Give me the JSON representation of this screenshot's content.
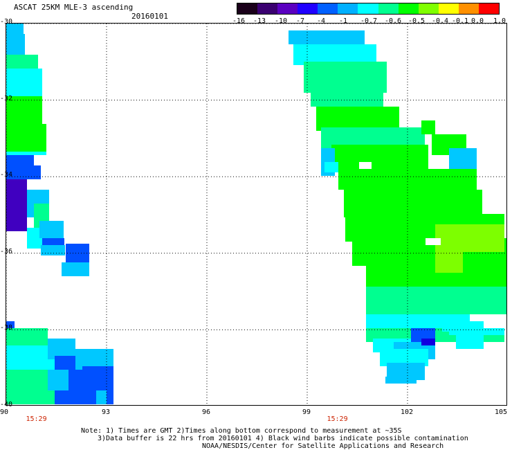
{
  "header": {
    "title": "ASCAT 25KM MLE-3 ascending",
    "date": "20160101"
  },
  "colorbar": {
    "tick_labels": [
      "-16",
      "-13",
      "-10",
      "-7",
      "-4",
      "-1",
      "-0.7",
      "-0.6",
      "-0.5",
      "-0.4",
      "-0.1",
      "0.0",
      "1.0"
    ],
    "colors": [
      "#1a001a",
      "#3a0070",
      "#5a00c0",
      "#2000ff",
      "#0060ff",
      "#00b0ff",
      "#00ffff",
      "#00ff90",
      "#00ff00",
      "#80ff00",
      "#ffff00",
      "#ff9000",
      "#ff0000"
    ]
  },
  "map": {
    "lat_labels": [
      "-30",
      "-32",
      "-34",
      "-36",
      "-38",
      "-40"
    ],
    "lon_labels": [
      "90",
      "93",
      "96",
      "99",
      "102",
      "105"
    ],
    "lat_range": [
      -40,
      -30
    ],
    "lon_range": [
      90,
      105
    ],
    "grid": "dotted",
    "time_labels": [
      {
        "text": "15:29",
        "lon": 90.9
      },
      {
        "text": "15:29",
        "lon": 99.9
      }
    ],
    "colors": {
      "cyan": "#00ffff",
      "sky": "#00c8ff",
      "aqua_green": "#00ff90",
      "green": "#00ff00",
      "yellow_green": "#7dff00",
      "blue": "#0050ff",
      "deep_blue": "#1000e0",
      "violet": "#4000c0"
    }
  },
  "notes": {
    "line1": "Note: 1) Times are GMT 2)Times along bottom correspond to measurement at ~35S",
    "line2": "3)Data buffer is 22 hrs from 20160101 4) Black wind barbs indicate possible contamination",
    "line3": "NOAA/NESDIS/Center for Satellite Applications and Research"
  }
}
